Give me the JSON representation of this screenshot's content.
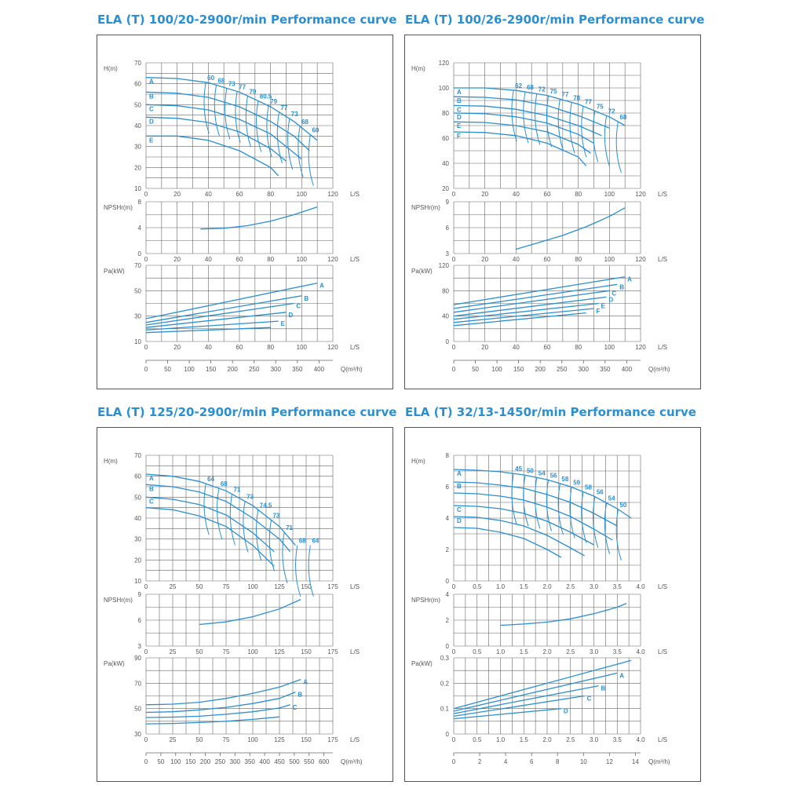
{
  "titles": [
    "ELA (T) 100/20-2900r/min Performance curve",
    "ELA (T) 100/26-2900r/min Performance curve",
    "ELA (T) 125/20-2900r/min Performance curve",
    "ELA (T) 32/13-1450r/min Performance curve"
  ],
  "colors": {
    "title": "#2a8fd0",
    "curve": "#2a8fd0",
    "grid": "#666666",
    "text": "#555555"
  },
  "chart_data": [
    {
      "type": "line",
      "title": "ELA (T) 100/20-2900r/min Performance curve",
      "q_unit": "L/S",
      "q_m3h_label": "Q(m³/h)",
      "q_m3h_ticks": [
        "0",
        "50",
        "100",
        "150",
        "200",
        "250",
        "300",
        "350",
        "400"
      ],
      "q_m3h_max": 400,
      "xlim": [
        0,
        120
      ],
      "xticks": [
        "0",
        "20",
        "40",
        "60",
        "80",
        "100",
        "120"
      ],
      "head": {
        "ylabel": "H(m)",
        "ylim": [
          10,
          70
        ],
        "yticks": [
          "10",
          "20",
          "30",
          "40",
          "50",
          "60",
          "70"
        ],
        "series": [
          {
            "name": "A",
            "x": [
              0,
              20,
              40,
              60,
              80,
              95,
              110
            ],
            "y": [
              63,
              62.5,
              60.5,
              56,
              49,
              42,
              33
            ]
          },
          {
            "name": "B",
            "x": [
              0,
              20,
              40,
              60,
              80,
              95,
              105
            ],
            "y": [
              56,
              55.5,
              53.5,
              49,
              42,
              35,
              28
            ]
          },
          {
            "name": "C",
            "x": [
              0,
              20,
              40,
              60,
              80,
              90,
              100
            ],
            "y": [
              50,
              49.5,
              47.5,
              43,
              36,
              30,
              24
            ]
          },
          {
            "name": "D",
            "x": [
              0,
              20,
              40,
              60,
              80,
              90
            ],
            "y": [
              44,
              43.5,
              41.5,
              37,
              29,
              23
            ]
          },
          {
            "name": "E",
            "x": [
              0,
              20,
              40,
              60,
              80,
              85
            ],
            "y": [
              35,
              35,
              33,
              28,
              20,
              16
            ]
          }
        ],
        "efficiency_labels": [
          "60",
          "68",
          "73",
          "77",
          "79",
          "80.5",
          "79",
          "77",
          "73",
          "68",
          "60"
        ]
      },
      "npsh": {
        "ylabel": "NPSHr(m)",
        "ylim": [
          0,
          8
        ],
        "yticks": [
          "0",
          "4",
          "8"
        ],
        "x": [
          35,
          50,
          65,
          80,
          95,
          110
        ],
        "y": [
          3.8,
          3.9,
          4.3,
          5.0,
          6.0,
          7.2
        ]
      },
      "power": {
        "ylabel": "Pa(kW)",
        "ylim": [
          10,
          70
        ],
        "yticks": [
          "10",
          "30",
          "50",
          "70"
        ],
        "series": [
          {
            "name": "A",
            "x": [
              0,
              110
            ],
            "y": [
              28,
              56
            ]
          },
          {
            "name": "B",
            "x": [
              0,
              100
            ],
            "y": [
              25,
              46
            ]
          },
          {
            "name": "C",
            "x": [
              0,
              95
            ],
            "y": [
              23,
              40
            ]
          },
          {
            "name": "D",
            "x": [
              0,
              90
            ],
            "y": [
              21,
              33
            ]
          },
          {
            "name": "E",
            "x": [
              0,
              85
            ],
            "y": [
              19,
              26
            ]
          },
          {
            "name": "",
            "x": [
              0,
              80
            ],
            "y": [
              17,
              21
            ]
          }
        ],
        "labels": [
          "A",
          "B",
          "C",
          "D",
          "E"
        ]
      }
    },
    {
      "type": "line",
      "title": "ELA (T) 100/26-2900r/min Performance curve",
      "q_unit": "L/S",
      "q_m3h_label": "Q(m³/h)",
      "q_m3h_ticks": [
        "0",
        "50",
        "100",
        "150",
        "200",
        "250",
        "300",
        "350",
        "400"
      ],
      "q_m3h_max": 400,
      "xlim": [
        0,
        120
      ],
      "xticks": [
        "0",
        "20",
        "40",
        "60",
        "80",
        "100",
        "120"
      ],
      "head": {
        "ylabel": "H(m)",
        "ylim": [
          20,
          120
        ],
        "yticks": [
          "20",
          "40",
          "60",
          "80",
          "100",
          "120"
        ],
        "series": [
          {
            "name": "A",
            "x": [
              0,
              20,
              40,
              60,
              80,
              100,
              110
            ],
            "y": [
              100,
              100,
              98,
              94,
              87,
              77,
              70
            ]
          },
          {
            "name": "B",
            "x": [
              0,
              20,
              40,
              60,
              80,
              100
            ],
            "y": [
              93,
              92.5,
              90.5,
              86,
              78,
              68
            ]
          },
          {
            "name": "C",
            "x": [
              0,
              20,
              40,
              60,
              80,
              95
            ],
            "y": [
              86,
              85.5,
              83,
              78,
              70,
              62
            ]
          },
          {
            "name": "D",
            "x": [
              0,
              20,
              40,
              60,
              80,
              90
            ],
            "y": [
              80,
              79.5,
              77,
              72,
              63,
              56
            ]
          },
          {
            "name": "E",
            "x": [
              0,
              20,
              40,
              60,
              80,
              88
            ],
            "y": [
              73,
              72.5,
              70,
              65,
              55,
              48
            ]
          },
          {
            "name": "F",
            "x": [
              0,
              20,
              40,
              60,
              80,
              85
            ],
            "y": [
              65,
              64.5,
              62,
              56,
              45,
              38
            ]
          }
        ],
        "efficiency_labels": [
          "62",
          "68",
          "72",
          "75",
          "77",
          "78",
          "77",
          "75",
          "72",
          "68"
        ]
      },
      "npsh": {
        "ylabel": "NPSHr(m)",
        "ylim": [
          3,
          9
        ],
        "yticks": [
          "3",
          "6",
          "9"
        ],
        "x": [
          40,
          55,
          70,
          85,
          100,
          110
        ],
        "y": [
          3.5,
          4.3,
          5.1,
          6.1,
          7.3,
          8.3
        ]
      },
      "power": {
        "ylabel": "Pa(kW)",
        "ylim": [
          0,
          120
        ],
        "yticks": [
          "0",
          "40",
          "80",
          "120"
        ],
        "series": [
          {
            "name": "A",
            "x": [
              0,
              110
            ],
            "y": [
              58,
              102
            ]
          },
          {
            "name": "B",
            "x": [
              0,
              105
            ],
            "y": [
              52,
              90
            ]
          },
          {
            "name": "C",
            "x": [
              0,
              100
            ],
            "y": [
              46,
              80
            ]
          },
          {
            "name": "D",
            "x": [
              0,
              98
            ],
            "y": [
              40,
              70
            ]
          },
          {
            "name": "E",
            "x": [
              0,
              93
            ],
            "y": [
              35,
              60
            ]
          },
          {
            "name": "F",
            "x": [
              0,
              90
            ],
            "y": [
              30,
              52
            ]
          },
          {
            "name": "",
            "x": [
              0,
              85
            ],
            "y": [
              25,
              45
            ]
          }
        ],
        "labels": [
          "A",
          "B",
          "C",
          "D",
          "E",
          "F"
        ]
      }
    },
    {
      "type": "line",
      "title": "ELA (T) 125/20-2900r/min Performance curve",
      "q_unit": "L/S",
      "q_m3h_label": "Q(m³/h)",
      "q_m3h_ticks": [
        "0",
        "50",
        "100",
        "150",
        "200",
        "250",
        "300",
        "350",
        "400",
        "450",
        "500",
        "550",
        "600"
      ],
      "q_m3h_max": 600,
      "xlim": [
        0,
        175
      ],
      "xticks": [
        "0",
        "25",
        "50",
        "75",
        "100",
        "125",
        "150",
        "175"
      ],
      "head": {
        "ylabel": "H(m)",
        "ylim": [
          10,
          70
        ],
        "yticks": [
          "10",
          "20",
          "30",
          "40",
          "50",
          "60",
          "70"
        ],
        "series": [
          {
            "name": "A",
            "x": [
              0,
              25,
              50,
              75,
              100,
              125,
              140
            ],
            "y": [
              61,
              60,
              57.5,
              53,
              46,
              36,
              27
            ]
          },
          {
            "name": "B",
            "x": [
              0,
              25,
              50,
              75,
              100,
              125,
              135
            ],
            "y": [
              56,
              55,
              52.5,
              48,
              40,
              30,
              24
            ]
          },
          {
            "name": "C",
            "x": [
              0,
              25,
              50,
              75,
              100,
              120
            ],
            "y": [
              50,
              49,
              46.5,
              41.5,
              33,
              24
            ]
          },
          {
            "name": "",
            "x": [
              0,
              25,
              50,
              75,
              100,
              120
            ],
            "y": [
              45,
              44,
              41,
              36,
              27,
              17
            ]
          }
        ],
        "efficiency_labels": [
          "64",
          "68",
          "71",
          "73",
          "74.5",
          "73",
          "71",
          "68",
          "64"
        ]
      },
      "npsh": {
        "ylabel": "NPSHr(m)",
        "ylim": [
          3,
          9
        ],
        "yticks": [
          "3",
          "6",
          "9"
        ],
        "x": [
          50,
          75,
          100,
          125,
          145
        ],
        "y": [
          5.5,
          5.8,
          6.4,
          7.3,
          8.4
        ]
      },
      "power": {
        "ylabel": "Pa(kW)",
        "ylim": [
          30,
          90
        ],
        "yticks": [
          "30",
          "50",
          "70",
          "90"
        ],
        "series": [
          {
            "name": "A",
            "x": [
              0,
              25,
              50,
              75,
              100,
              125,
              145
            ],
            "y": [
              53,
              53.5,
              55,
              58,
              62,
              67,
              73
            ]
          },
          {
            "name": "B",
            "x": [
              0,
              25,
              50,
              75,
              100,
              125,
              140
            ],
            "y": [
              47,
              47.5,
              49,
              51,
              54,
              58,
              63
            ]
          },
          {
            "name": "C",
            "x": [
              0,
              25,
              50,
              75,
              100,
              125,
              135
            ],
            "y": [
              43,
              43.3,
              44,
              45.5,
              47.5,
              50.5,
              53
            ]
          },
          {
            "name": "",
            "x": [
              0,
              25,
              50,
              75,
              100,
              125
            ],
            "y": [
              38,
              38.3,
              39,
              40,
              41.5,
              43.5
            ]
          }
        ],
        "labels": [
          "A",
          "B",
          "C"
        ]
      }
    },
    {
      "type": "line",
      "title": "ELA (T) 32/13-1450r/min Performance curve",
      "q_unit": "L/S",
      "q_m3h_label": "Q(m³/h)",
      "q_m3h_ticks": [
        "0",
        "2",
        "4",
        "6",
        "8",
        "10",
        "12",
        "14"
      ],
      "q_m3h_max": 14,
      "xlim": [
        0,
        4.0
      ],
      "xticks": [
        "0",
        "0.5",
        "1.0",
        "1.5",
        "2.0",
        "2.5",
        "3.0",
        "3.5",
        "4.0"
      ],
      "head": {
        "ylabel": "H(m)",
        "ylim": [
          0,
          8
        ],
        "yticks": [
          "0",
          "2",
          "4",
          "6",
          "8"
        ],
        "series": [
          {
            "name": "A",
            "x": [
              0,
              0.5,
              1,
              1.5,
              2,
              2.5,
              3,
              3.5,
              3.8
            ],
            "y": [
              7.1,
              7.05,
              6.95,
              6.75,
              6.45,
              6,
              5.4,
              4.6,
              4
            ]
          },
          {
            "name": "B",
            "x": [
              0,
              0.5,
              1,
              1.5,
              2,
              2.5,
              3,
              3.5
            ],
            "y": [
              6.3,
              6.25,
              6.1,
              5.9,
              5.5,
              5,
              4.3,
              3.5
            ]
          },
          {
            "name": "",
            "x": [
              0,
              0.5,
              1,
              1.5,
              2,
              2.5,
              3,
              3.4
            ],
            "y": [
              5.6,
              5.55,
              5.4,
              5.15,
              4.7,
              4.1,
              3.3,
              2.6
            ]
          },
          {
            "name": "C",
            "x": [
              0,
              0.5,
              1,
              1.5,
              2,
              2.5,
              3
            ],
            "y": [
              4.8,
              4.75,
              4.6,
              4.3,
              3.8,
              3.1,
              2.3
            ]
          },
          {
            "name": "D",
            "x": [
              0,
              0.5,
              1,
              1.5,
              2,
              2.5,
              2.8
            ],
            "y": [
              4.1,
              4.05,
              3.85,
              3.5,
              2.9,
              2.1,
              1.6
            ]
          },
          {
            "name": "",
            "x": [
              0,
              0.5,
              1,
              1.5,
              2,
              2.3
            ],
            "y": [
              3.4,
              3.35,
              3.1,
              2.7,
              2,
              1.5
            ]
          }
        ],
        "efficiency_labels": [
          "45",
          "50",
          "54",
          "56",
          "58",
          "59",
          "58",
          "56",
          "54",
          "50"
        ]
      },
      "npsh": {
        "ylabel": "NPSHr(m)",
        "ylim": [
          0,
          4
        ],
        "yticks": [
          "0",
          "2",
          "4"
        ],
        "x": [
          1,
          1.5,
          2,
          2.5,
          3,
          3.5,
          3.7
        ],
        "y": [
          1.6,
          1.7,
          1.85,
          2.1,
          2.5,
          3.0,
          3.3
        ]
      },
      "power": {
        "ylabel": "Pa(kW)",
        "ylim": [
          0,
          0.3
        ],
        "yticks": [
          "0",
          "0.1",
          "0.2",
          "0.3"
        ],
        "series": [
          {
            "name": "",
            "x": [
              0,
              3.8
            ],
            "y": [
              0.1,
              0.29
            ]
          },
          {
            "name": "A",
            "x": [
              0,
              3.5
            ],
            "y": [
              0.09,
              0.24
            ]
          },
          {
            "name": "B",
            "x": [
              0,
              3.1
            ],
            "y": [
              0.08,
              0.19
            ]
          },
          {
            "name": "C",
            "x": [
              0,
              2.8
            ],
            "y": [
              0.07,
              0.15
            ]
          },
          {
            "name": "D",
            "x": [
              0,
              2.3
            ],
            "y": [
              0.06,
              0.1
            ]
          }
        ],
        "labels": [
          "A",
          "B",
          "C",
          "D"
        ]
      }
    }
  ]
}
